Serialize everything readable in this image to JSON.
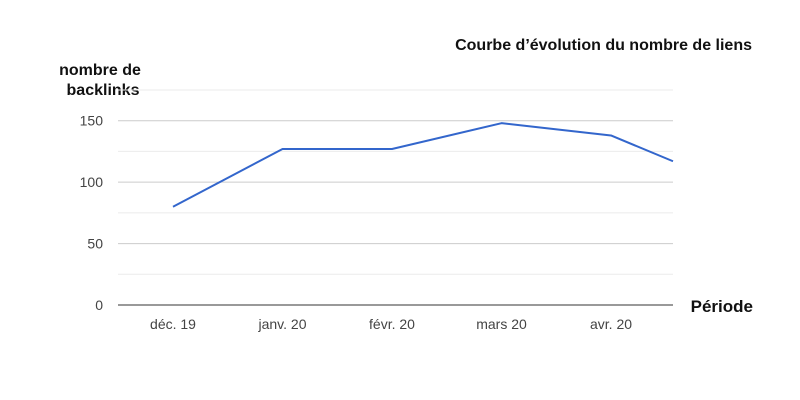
{
  "chart_data": {
    "type": "line",
    "title": "Courbe d’évolution du nombre de liens",
    "ylabel_lines": [
      "nombre de",
      "backlinks"
    ],
    "xlabel": "Période",
    "categories": [
      "déc. 19",
      "janv. 20",
      "févr. 20",
      "mars 20",
      "avr. 20",
      ""
    ],
    "series": [
      {
        "values": [
          80,
          127,
          127,
          148,
          138,
          117
        ]
      }
    ],
    "ylim": [
      0,
      175
    ],
    "yticks": [
      0,
      50,
      100,
      150
    ],
    "yticks_labels": [
      "0",
      "50",
      "100",
      "150"
    ],
    "minor_gridlines": [
      25,
      75,
      125,
      175
    ],
    "grid": true,
    "line_color": "#3366cc"
  }
}
